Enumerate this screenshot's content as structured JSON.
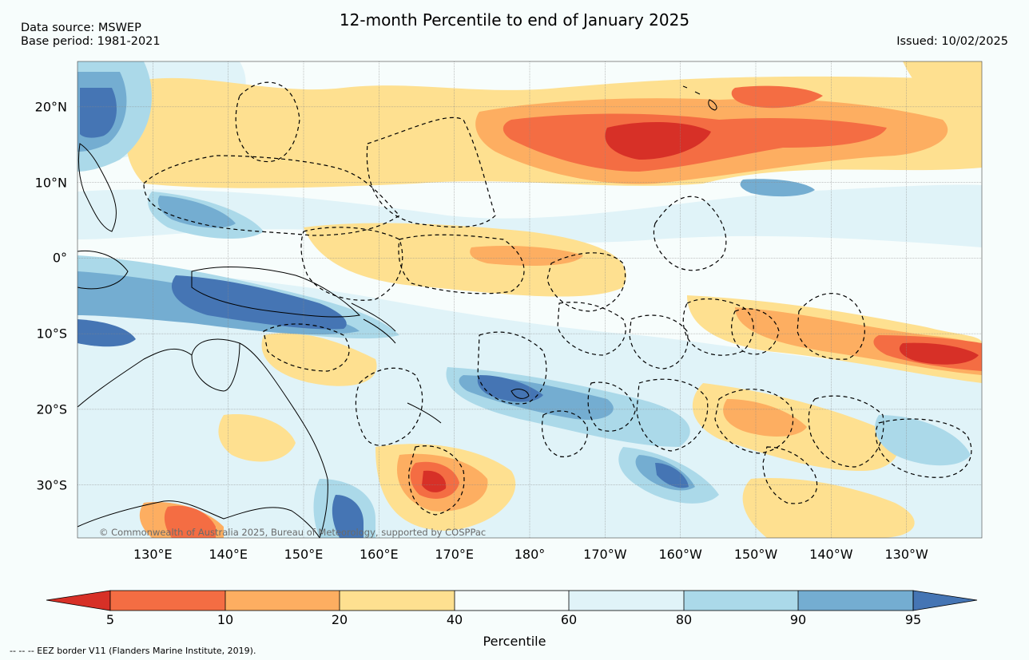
{
  "header": {
    "title": "12-month Percentile to end of January 2025",
    "source_line": "Data source: MSWEP",
    "base_line": "Base period: 1981-2021",
    "issued": "Issued: 10/02/2025"
  },
  "map": {
    "lat_labels": [
      "20°N",
      "10°N",
      "0°",
      "10°S",
      "20°S",
      "30°S"
    ],
    "lon_labels": [
      "130°E",
      "140°E",
      "150°E",
      "160°E",
      "170°E",
      "180°",
      "170°W",
      "160°W",
      "150°W",
      "140°W",
      "130°W"
    ],
    "extent": {
      "lon_min": 120,
      "lon_max": 240,
      "lat_min": -37,
      "lat_max": 26
    },
    "copyright": "© Commonwealth of Australia 2025, Bureau of Meteorology, supported by COSPPac"
  },
  "colorbar": {
    "label": "Percentile",
    "ticks": [
      "5",
      "10",
      "20",
      "40",
      "60",
      "80",
      "90",
      "95"
    ],
    "colors": {
      "below5": "#d73027",
      "p5_10": "#f46d43",
      "p10_20": "#fdae61",
      "p20_40": "#fee090",
      "p40_60": "#f7fdfc",
      "p60_80": "#e0f3f8",
      "p80_90": "#abd9e9",
      "p90_95": "#74add1",
      "above95": "#4575b4"
    }
  },
  "footer": {
    "eez_note": "--  --  -- EEZ border V11 (Flanders Marine Institute, 2019)."
  }
}
